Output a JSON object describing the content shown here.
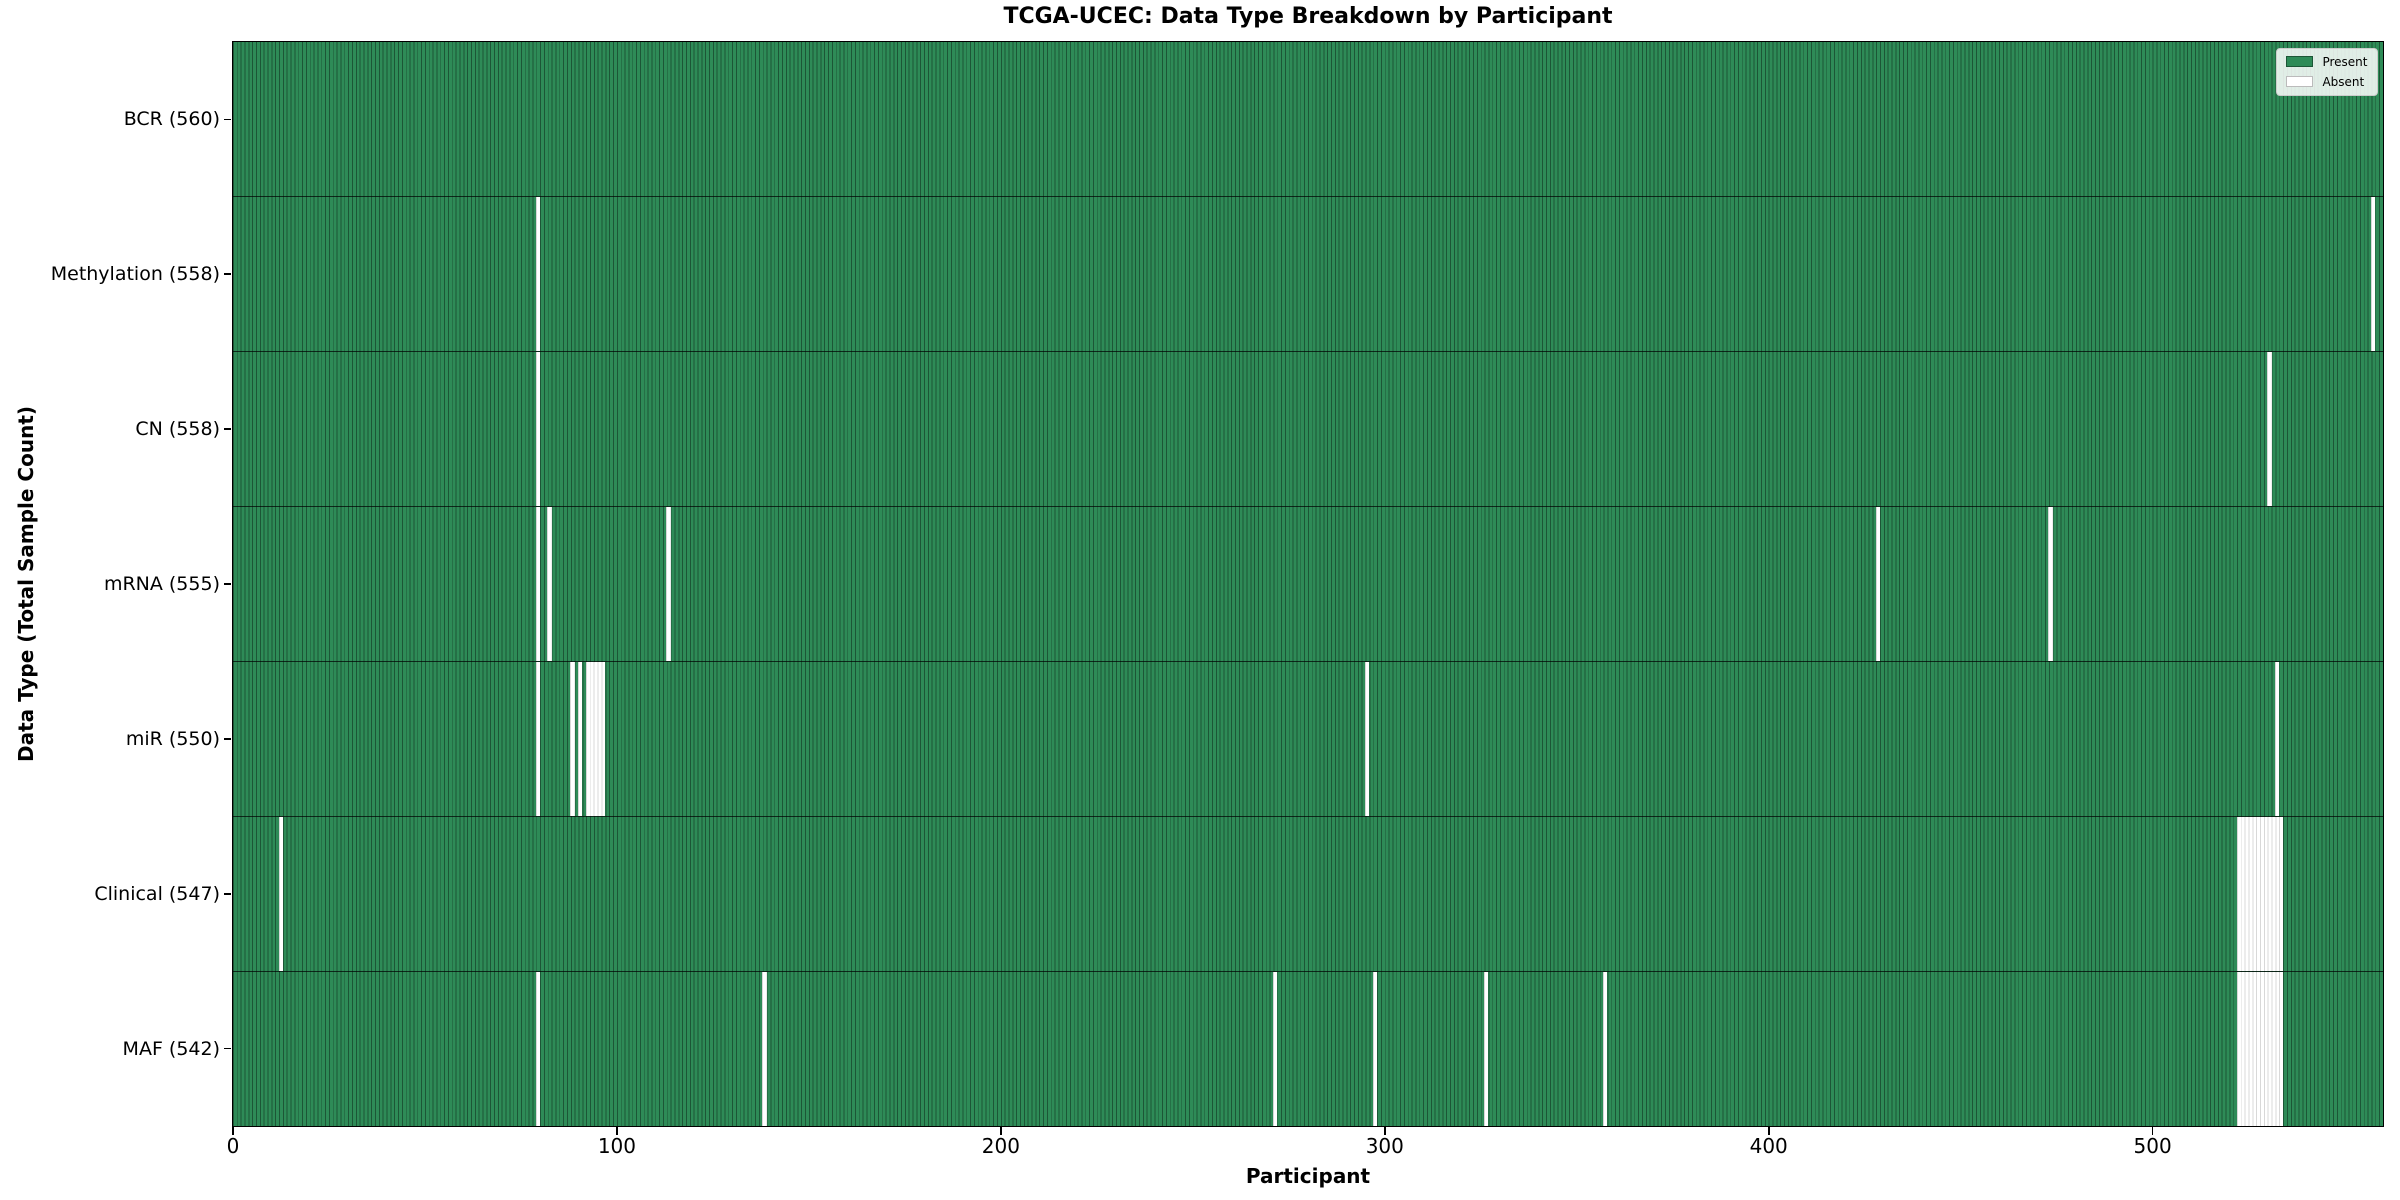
{
  "title": "TCGA-UCEC: Data Type Breakdown by Participant",
  "axes": {
    "x_label": "Participant",
    "y_label": "Data Type (Total Sample Count)"
  },
  "legend": {
    "items": [
      {
        "label": "Present",
        "color": "#2e8b57"
      },
      {
        "label": "Absent",
        "color": "#ffffff"
      }
    ],
    "position": "upper right"
  },
  "colors": {
    "present_fill": "#2e8b57",
    "present_edge": "#1c5636",
    "absent_fill": "#ffffff",
    "absent_edge": "#d8d8d8",
    "axis": "#000000",
    "row_divider": "#1a1a1a"
  },
  "chart_data": {
    "type": "heatmap",
    "title": "TCGA-UCEC: Data Type Breakdown by Participant",
    "xlabel": "Participant",
    "ylabel": "Data Type (Total Sample Count)",
    "x_range": [
      0,
      560
    ],
    "x_ticks": [
      0,
      100,
      200,
      300,
      400,
      500
    ],
    "total_participants": 560,
    "grid": false,
    "legend_entries": [
      "Present",
      "Absent"
    ],
    "legend_position": "upper right",
    "cell_states": {
      "present": 1,
      "absent": 0
    },
    "rows": [
      {
        "data_type": "BCR",
        "label": "BCR (560)",
        "present_count": 560,
        "absent_count": 0,
        "absent_participants": []
      },
      {
        "data_type": "Methylation",
        "label": "Methylation (558)",
        "present_count": 558,
        "absent_count": 2,
        "absent_participants": [
          79,
          557
        ]
      },
      {
        "data_type": "CN",
        "label": "CN (558)",
        "present_count": 558,
        "absent_count": 2,
        "absent_participants": [
          79,
          530
        ]
      },
      {
        "data_type": "mRNA",
        "label": "mRNA (555)",
        "present_count": 555,
        "absent_count": 5,
        "absent_participants": [
          79,
          82,
          113,
          428,
          473
        ]
      },
      {
        "data_type": "miR",
        "label": "miR (550)",
        "present_count": 550,
        "absent_count": 10,
        "absent_participants": [
          79,
          88,
          90,
          92,
          93,
          94,
          95,
          96,
          295,
          532
        ]
      },
      {
        "data_type": "Clinical",
        "label": "Clinical (547)",
        "present_count": 547,
        "absent_count": 13,
        "absent_participants": [
          12,
          522,
          523,
          524,
          525,
          526,
          527,
          528,
          529,
          530,
          531,
          532,
          533
        ]
      },
      {
        "data_type": "MAF",
        "label": "MAF (542)",
        "present_count": 542,
        "absent_count": 18,
        "absent_participants": [
          79,
          138,
          271,
          297,
          326,
          357,
          522,
          523,
          524,
          525,
          526,
          527,
          528,
          529,
          530,
          531,
          532,
          533
        ]
      }
    ]
  }
}
